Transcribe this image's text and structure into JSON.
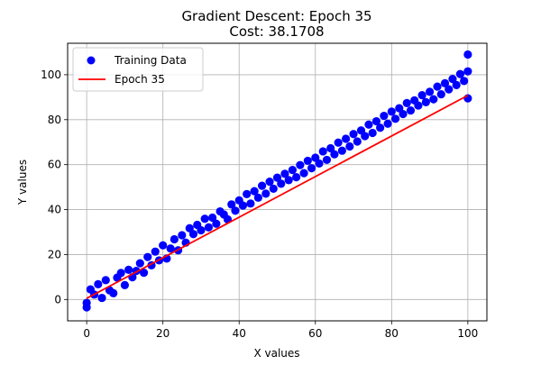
{
  "chart_data": {
    "type": "scatter",
    "title": "Gradient Descent: Epoch 35",
    "subtitle": "Cost: 38.1708",
    "xlabel": "X values",
    "ylabel": "Y values",
    "xlim": [
      -5,
      105
    ],
    "ylim": [
      -9.5,
      114
    ],
    "xticks": [
      0,
      20,
      40,
      60,
      80,
      100
    ],
    "yticks": [
      0,
      20,
      40,
      60,
      80,
      100
    ],
    "grid": true,
    "legend_position": "top-left",
    "series": [
      {
        "name": "Training Data",
        "kind": "scatter",
        "color": "#0000ff",
        "x": [
          0,
          1,
          2,
          3,
          4,
          5,
          6,
          7,
          8,
          9,
          10,
          11,
          12,
          13,
          14,
          15,
          16,
          17,
          18,
          19,
          20,
          21,
          22,
          23,
          24,
          25,
          26,
          27,
          28,
          29,
          30,
          31,
          32,
          33,
          34,
          35,
          36,
          37,
          38,
          39,
          40,
          41,
          42,
          43,
          44,
          45,
          46,
          47,
          48,
          49,
          50,
          51,
          52,
          53,
          54,
          55,
          56,
          57,
          58,
          59,
          60,
          61,
          62,
          63,
          64,
          65,
          66,
          67,
          68,
          69,
          70,
          71,
          72,
          73,
          74,
          75,
          76,
          77,
          78,
          79,
          80,
          81,
          82,
          83,
          84,
          85,
          86,
          87,
          88,
          89,
          90,
          91,
          92,
          93,
          94,
          95,
          96,
          97,
          98,
          99,
          100,
          100,
          0,
          100
        ],
        "y": [
          -1.5,
          4.5,
          2.2,
          6.8,
          0.7,
          8.6,
          4.1,
          2.8,
          9.7,
          11.8,
          6.4,
          13.2,
          9.9,
          12.7,
          16.1,
          11.9,
          18.9,
          15.2,
          21.3,
          17.4,
          24.1,
          18.2,
          22.7,
          26.8,
          21.9,
          28.6,
          25.3,
          31.7,
          29.1,
          33.2,
          30.8,
          35.9,
          32.1,
          36.4,
          33.7,
          39.2,
          37.8,
          35.6,
          42.3,
          39.5,
          44.1,
          41.8,
          46.9,
          42.7,
          48.2,
          45.3,
          50.6,
          47.1,
          52.4,
          49.3,
          54.2,
          51.5,
          55.9,
          53.1,
          57.6,
          54.4,
          59.8,
          56.2,
          61.7,
          58.4,
          63.1,
          60.5,
          65.9,
          62.1,
          67.3,
          64.6,
          69.8,
          66.2,
          71.5,
          68.1,
          73.6,
          70.3,
          75.2,
          72.7,
          77.8,
          74.1,
          79.3,
          76.4,
          81.7,
          78.2,
          83.6,
          80.4,
          85.1,
          82.5,
          87.4,
          84.1,
          88.6,
          86.3,
          90.9,
          87.8,
          92.4,
          89.1,
          94.7,
          91.3,
          96.2,
          93.5,
          98.1,
          95.4,
          100.3,
          97.2,
          101.5,
          109,
          -3.5,
          89.5
        ]
      },
      {
        "name": "Epoch 35",
        "kind": "line",
        "color": "#ff0000",
        "x": [
          0,
          100
        ],
        "y": [
          0.5,
          90.8
        ]
      }
    ]
  }
}
